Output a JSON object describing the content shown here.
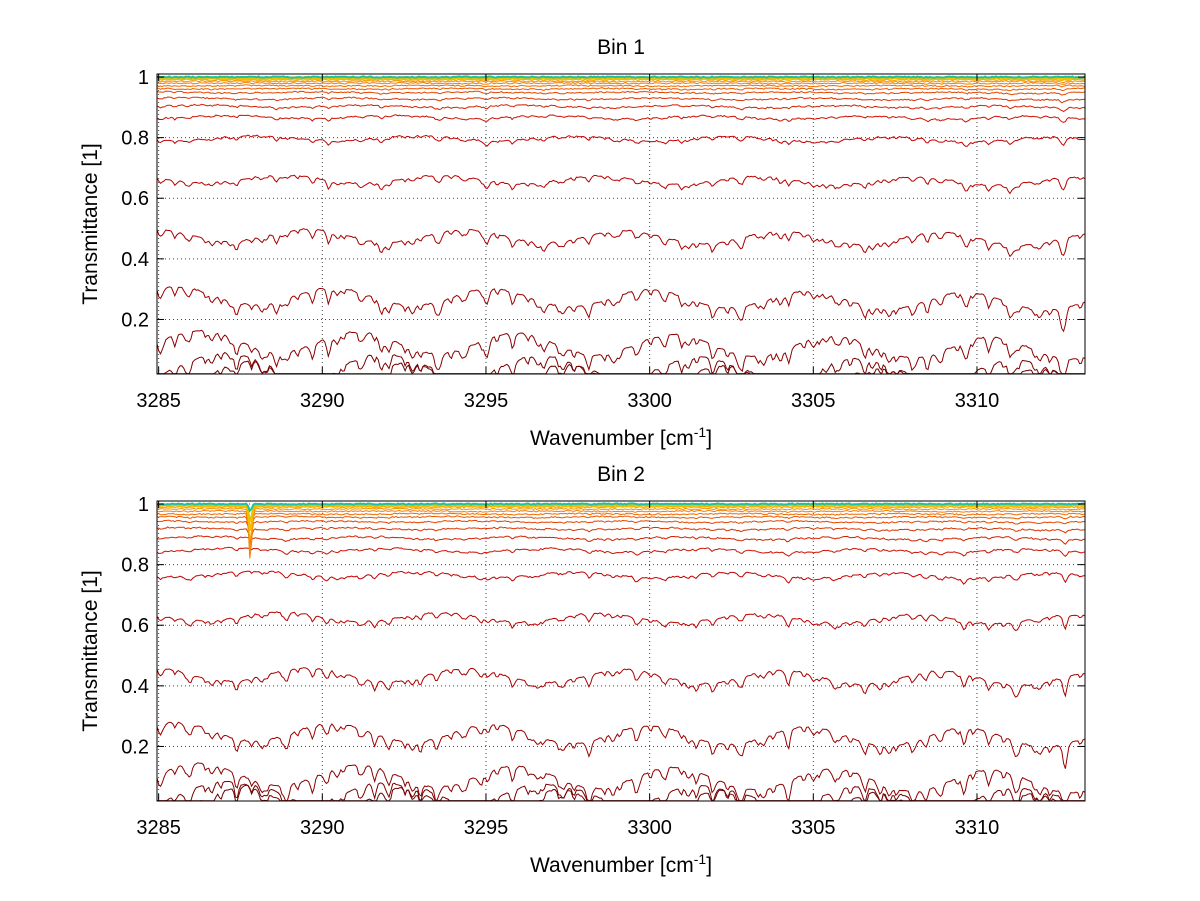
{
  "chart_data": [
    {
      "type": "line",
      "title": "Bin 1",
      "xlabel": "Wavenumber [cm",
      "xlabel_sup": "-1",
      "xlabel_end": "]",
      "ylabel": "Transmittance [1]",
      "xlim": [
        3284.95,
        3313.3
      ],
      "ylim": [
        0.02,
        1.01
      ],
      "xticks": [
        3285,
        3290,
        3295,
        3300,
        3305,
        3310
      ],
      "yticks": [
        0.2,
        0.4,
        0.6,
        0.8,
        1
      ],
      "ytick_labels": [
        "0.2",
        "0.4",
        "0.6",
        "0.8",
        "1"
      ],
      "grid": true,
      "legend": "none",
      "series_baselines": [
        0.025,
        0.055,
        0.13,
        0.28,
        0.48,
        0.665,
        0.8,
        0.87,
        0.905,
        0.93,
        0.95,
        0.962,
        0.972,
        0.98,
        0.986,
        0.991,
        0.995,
        0.998,
        1.0
      ],
      "series_colors": [
        "#6a0000",
        "#7a0000",
        "#8b0000",
        "#9a0000",
        "#a80000",
        "#b80000",
        "#c40000",
        "#cc1100",
        "#d42200",
        "#dc3300",
        "#e34400",
        "#e85800",
        "#ee6a00",
        "#f27e00",
        "#f59200",
        "#f8a600",
        "#f9ba00",
        "#e0c800",
        "#20c0a0"
      ],
      "notable_dips": [
        {
          "x": 3285.5,
          "depth": 0.3
        },
        {
          "x": 3287.2,
          "depth": 0.4
        },
        {
          "x": 3288.6,
          "depth": 0.9
        },
        {
          "x": 3290.2,
          "depth": 0.8
        },
        {
          "x": 3291.8,
          "depth": 1.0
        },
        {
          "x": 3293.6,
          "depth": 0.6
        },
        {
          "x": 3295.0,
          "depth": 0.7
        },
        {
          "x": 3296.8,
          "depth": 0.5
        },
        {
          "x": 3299.0,
          "depth": 0.3
        },
        {
          "x": 3301.0,
          "depth": 0.4
        },
        {
          "x": 3302.8,
          "depth": 0.5
        },
        {
          "x": 3304.0,
          "depth": 0.7
        },
        {
          "x": 3305.4,
          "depth": 0.4
        },
        {
          "x": 3306.8,
          "depth": 0.5
        },
        {
          "x": 3308.5,
          "depth": 0.6
        },
        {
          "x": 3309.7,
          "depth": 0.8
        },
        {
          "x": 3311.0,
          "depth": 1.0
        },
        {
          "x": 3312.6,
          "depth": 1.2
        }
      ]
    },
    {
      "type": "line",
      "title": "Bin 2",
      "xlabel": "Wavenumber [cm",
      "xlabel_sup": "-1",
      "xlabel_end": "]",
      "ylabel": "Transmittance [1]",
      "xlim": [
        3284.95,
        3313.3
      ],
      "ylim": [
        0.02,
        1.01
      ],
      "xticks": [
        3285,
        3290,
        3295,
        3300,
        3305,
        3310
      ],
      "yticks": [
        0.2,
        0.4,
        0.6,
        0.8,
        1
      ],
      "ytick_labels": [
        "0.2",
        "0.4",
        "0.6",
        "0.8",
        "1"
      ],
      "grid": true,
      "legend": "none",
      "series_baselines": [
        0.035,
        0.05,
        0.11,
        0.25,
        0.44,
        0.63,
        0.77,
        0.85,
        0.89,
        0.92,
        0.943,
        0.958,
        0.968,
        0.977,
        0.984,
        0.99,
        0.994,
        0.997,
        1.0
      ],
      "series_colors": [
        "#6a0000",
        "#7a0000",
        "#8b0000",
        "#9a0000",
        "#a80000",
        "#b80000",
        "#c40000",
        "#cc1100",
        "#d42200",
        "#dc3300",
        "#e34400",
        "#e85800",
        "#ee6a00",
        "#f27e00",
        "#f59200",
        "#f8a600",
        "#f9ba00",
        "#e0c800",
        "#20c0a0"
      ],
      "sharp_dip": {
        "x": 3287.8,
        "min_y": 0.81
      },
      "notable_dips": [
        {
          "x": 3286.0,
          "depth": 0.3
        },
        {
          "x": 3288.9,
          "depth": 0.5
        },
        {
          "x": 3290.1,
          "depth": 0.6
        },
        {
          "x": 3291.6,
          "depth": 0.5
        },
        {
          "x": 3293.0,
          "depth": 0.4
        },
        {
          "x": 3294.8,
          "depth": 0.4
        },
        {
          "x": 3296.4,
          "depth": 0.4
        },
        {
          "x": 3298.2,
          "depth": 0.3
        },
        {
          "x": 3299.6,
          "depth": 0.3
        },
        {
          "x": 3301.4,
          "depth": 0.4
        },
        {
          "x": 3302.8,
          "depth": 0.4
        },
        {
          "x": 3304.2,
          "depth": 0.5
        },
        {
          "x": 3305.6,
          "depth": 0.4
        },
        {
          "x": 3307.0,
          "depth": 0.4
        },
        {
          "x": 3308.4,
          "depth": 0.5
        },
        {
          "x": 3309.6,
          "depth": 0.6
        },
        {
          "x": 3311.2,
          "depth": 0.6
        },
        {
          "x": 3312.7,
          "depth": 0.8
        }
      ]
    }
  ]
}
